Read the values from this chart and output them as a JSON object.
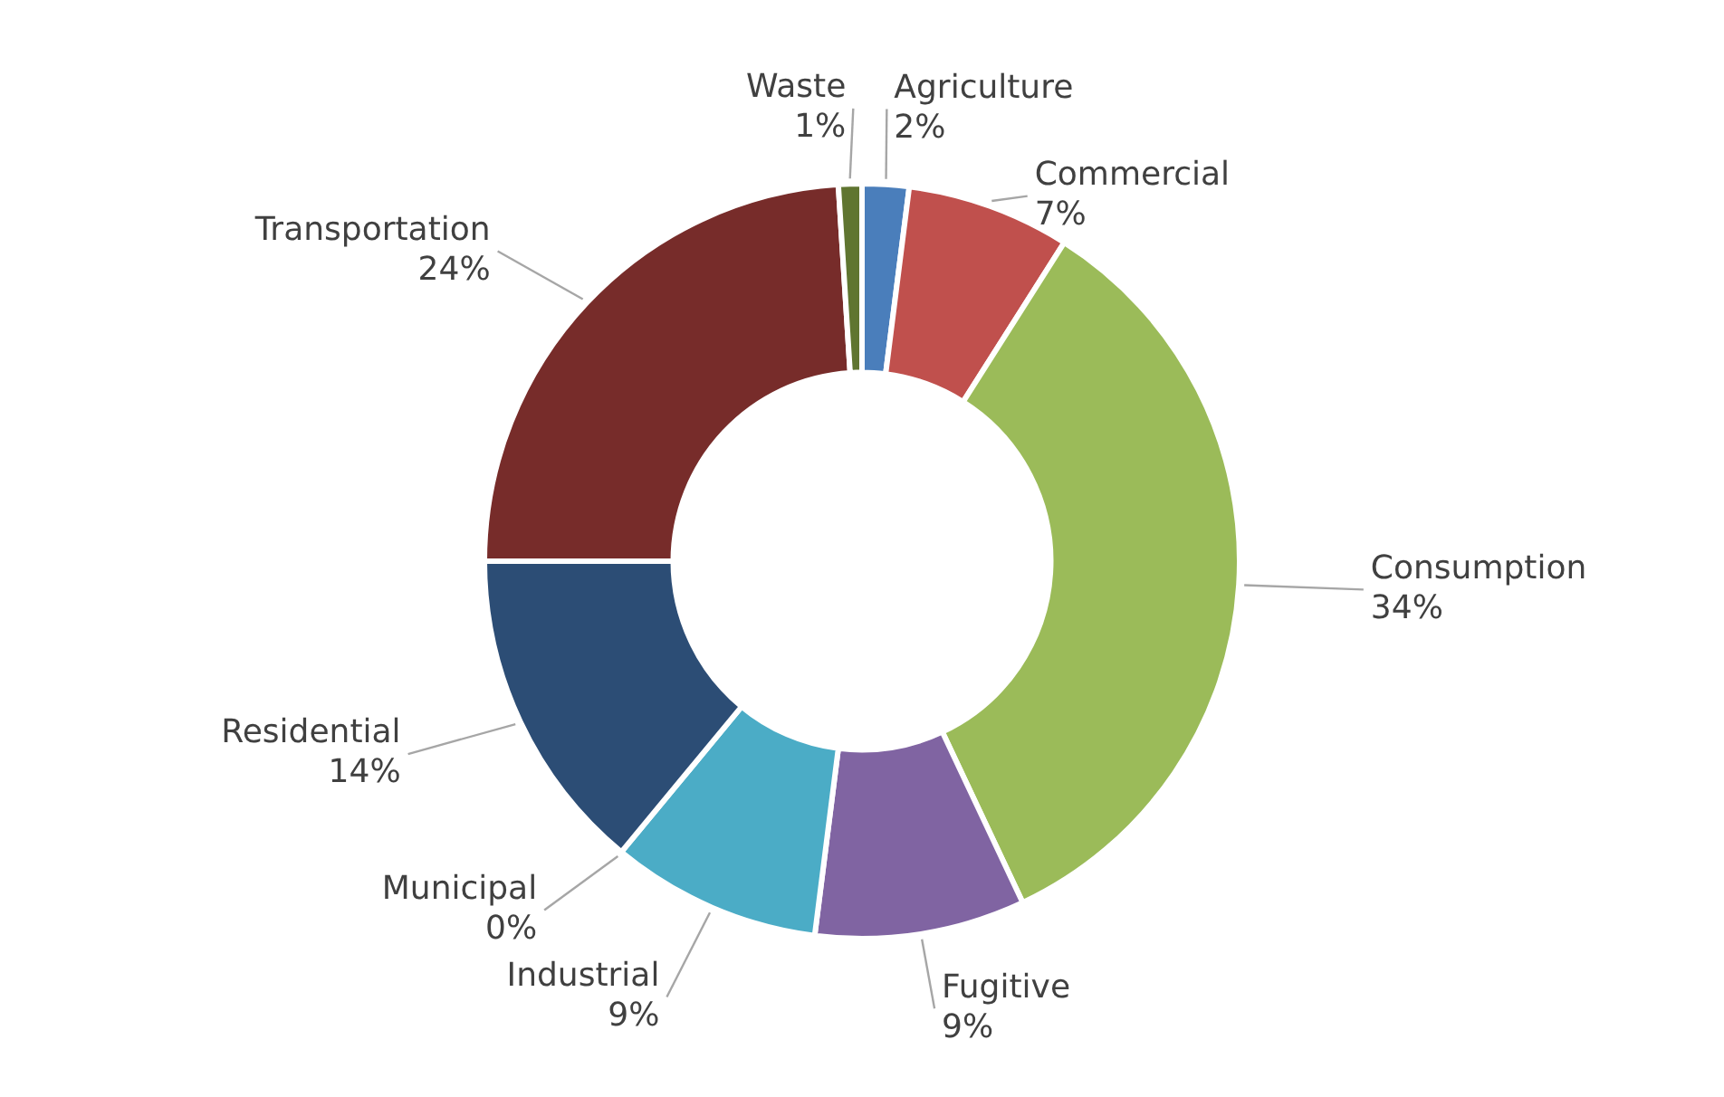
{
  "chart_data": {
    "type": "donut",
    "categories": [
      "Agriculture",
      "Commercial",
      "Consumption",
      "Fugitive",
      "Industrial",
      "Municipal",
      "Residential",
      "Transportation",
      "Waste"
    ],
    "values": [
      2,
      7,
      34,
      9,
      9,
      0,
      14,
      24,
      1
    ],
    "value_labels": [
      "2%",
      "7%",
      "34%",
      "9%",
      "9%",
      "0%",
      "14%",
      "24%",
      "1%"
    ],
    "colors": [
      "#4a7ebb",
      "#c0504d",
      "#9bbb59",
      "#8064a2",
      "#4bacc6",
      "#f79646",
      "#2c4d75",
      "#772c2a",
      "#5f7530"
    ]
  }
}
